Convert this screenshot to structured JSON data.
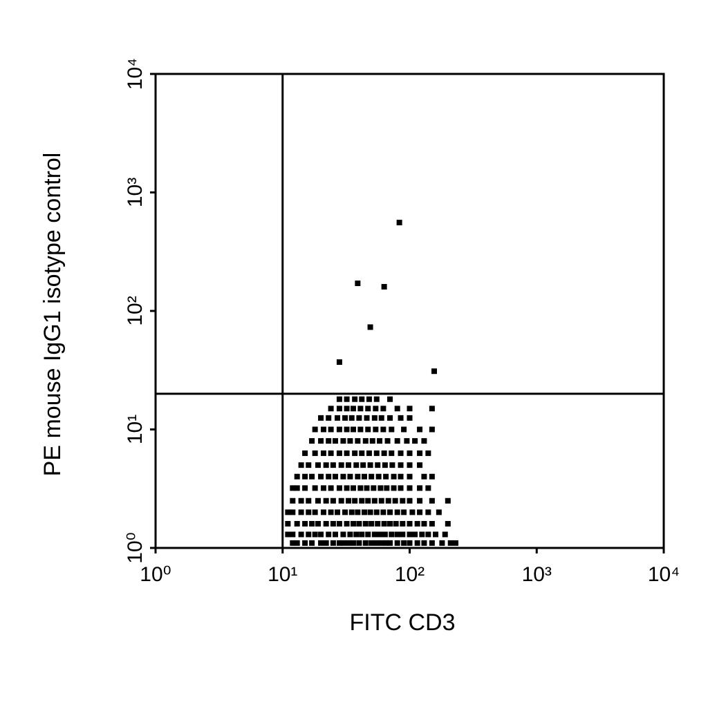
{
  "chart_data": {
    "type": "scatter",
    "x_label": "FITC CD3",
    "y_label": "PE mouse IgG1 isotype control",
    "xscale": "log",
    "yscale": "log",
    "xlim": [
      1,
      10000
    ],
    "ylim": [
      1,
      10000
    ],
    "xticks": [
      {
        "value": 1,
        "label": "10⁰"
      },
      {
        "value": 10,
        "label": "10¹"
      },
      {
        "value": 100,
        "label": "10²"
      },
      {
        "value": 1000,
        "label": "10³"
      },
      {
        "value": 10000,
        "label": "10⁴"
      }
    ],
    "yticks": [
      {
        "value": 1,
        "label": "10⁰"
      },
      {
        "value": 10,
        "label": "10¹"
      },
      {
        "value": 100,
        "label": "10²"
      },
      {
        "value": 1000,
        "label": "10³"
      },
      {
        "value": 10000,
        "label": "10⁴"
      }
    ],
    "quadrant": {
      "x": 10,
      "y": 20
    },
    "color": "#000000",
    "points": [
      [
        12,
        1.1
      ],
      [
        13,
        1.1
      ],
      [
        15,
        1.1
      ],
      [
        17,
        1.1
      ],
      [
        20,
        1.1
      ],
      [
        22,
        1.1
      ],
      [
        25,
        1.1
      ],
      [
        28,
        1.1
      ],
      [
        30,
        1.1
      ],
      [
        33,
        1.1
      ],
      [
        36,
        1.1
      ],
      [
        40,
        1.1
      ],
      [
        45,
        1.1
      ],
      [
        50,
        1.1
      ],
      [
        55,
        1.1
      ],
      [
        60,
        1.1
      ],
      [
        65,
        1.1
      ],
      [
        70,
        1.1
      ],
      [
        80,
        1.1
      ],
      [
        90,
        1.1
      ],
      [
        100,
        1.1
      ],
      [
        115,
        1.1
      ],
      [
        130,
        1.1
      ],
      [
        150,
        1.1
      ],
      [
        180,
        1.1
      ],
      [
        210,
        1.1
      ],
      [
        230,
        1.1
      ],
      [
        11,
        1.3
      ],
      [
        12,
        1.3
      ],
      [
        14,
        1.3
      ],
      [
        16,
        1.3
      ],
      [
        18,
        1.3
      ],
      [
        20,
        1.3
      ],
      [
        23,
        1.3
      ],
      [
        26,
        1.3
      ],
      [
        30,
        1.3
      ],
      [
        34,
        1.3
      ],
      [
        38,
        1.3
      ],
      [
        42,
        1.3
      ],
      [
        47,
        1.3
      ],
      [
        53,
        1.3
      ],
      [
        58,
        1.3
      ],
      [
        64,
        1.3
      ],
      [
        72,
        1.3
      ],
      [
        80,
        1.3
      ],
      [
        88,
        1.3
      ],
      [
        100,
        1.3
      ],
      [
        110,
        1.3
      ],
      [
        125,
        1.3
      ],
      [
        140,
        1.3
      ],
      [
        160,
        1.3
      ],
      [
        190,
        1.3
      ],
      [
        11,
        1.6
      ],
      [
        13,
        1.6
      ],
      [
        15,
        1.6
      ],
      [
        17,
        1.6
      ],
      [
        19,
        1.6
      ],
      [
        22,
        1.6
      ],
      [
        25,
        1.6
      ],
      [
        28,
        1.6
      ],
      [
        32,
        1.6
      ],
      [
        36,
        1.6
      ],
      [
        40,
        1.6
      ],
      [
        45,
        1.6
      ],
      [
        50,
        1.6
      ],
      [
        56,
        1.6
      ],
      [
        63,
        1.6
      ],
      [
        70,
        1.6
      ],
      [
        78,
        1.6
      ],
      [
        88,
        1.6
      ],
      [
        100,
        1.6
      ],
      [
        115,
        1.6
      ],
      [
        130,
        1.6
      ],
      [
        150,
        1.6
      ],
      [
        200,
        1.6
      ],
      [
        11,
        2
      ],
      [
        12,
        2
      ],
      [
        14,
        2
      ],
      [
        16,
        2
      ],
      [
        18,
        2
      ],
      [
        21,
        2
      ],
      [
        24,
        2
      ],
      [
        27,
        2
      ],
      [
        31,
        2
      ],
      [
        35,
        2
      ],
      [
        39,
        2
      ],
      [
        44,
        2
      ],
      [
        49,
        2
      ],
      [
        55,
        2
      ],
      [
        62,
        2
      ],
      [
        70,
        2
      ],
      [
        80,
        2
      ],
      [
        90,
        2
      ],
      [
        105,
        2
      ],
      [
        120,
        2
      ],
      [
        140,
        2
      ],
      [
        170,
        2
      ],
      [
        12,
        2.5
      ],
      [
        14,
        2.5
      ],
      [
        16,
        2.5
      ],
      [
        19,
        2.5
      ],
      [
        22,
        2.5
      ],
      [
        25,
        2.5
      ],
      [
        29,
        2.5
      ],
      [
        33,
        2.5
      ],
      [
        37,
        2.5
      ],
      [
        42,
        2.5
      ],
      [
        47,
        2.5
      ],
      [
        53,
        2.5
      ],
      [
        60,
        2.5
      ],
      [
        68,
        2.5
      ],
      [
        77,
        2.5
      ],
      [
        88,
        2.5
      ],
      [
        100,
        2.5
      ],
      [
        120,
        2.5
      ],
      [
        150,
        2.5
      ],
      [
        200,
        2.5
      ],
      [
        12,
        3.2
      ],
      [
        13,
        3.2
      ],
      [
        15,
        3.2
      ],
      [
        18,
        3.2
      ],
      [
        21,
        3.2
      ],
      [
        24,
        3.2
      ],
      [
        28,
        3.2
      ],
      [
        32,
        3.2
      ],
      [
        36,
        3.2
      ],
      [
        41,
        3.2
      ],
      [
        46,
        3.2
      ],
      [
        52,
        3.2
      ],
      [
        59,
        3.2
      ],
      [
        66,
        3.2
      ],
      [
        75,
        3.2
      ],
      [
        85,
        3.2
      ],
      [
        100,
        3.2
      ],
      [
        120,
        3.2
      ],
      [
        140,
        3.2
      ],
      [
        13,
        4
      ],
      [
        15,
        4
      ],
      [
        17,
        4
      ],
      [
        20,
        4
      ],
      [
        23,
        4
      ],
      [
        26,
        4
      ],
      [
        30,
        4
      ],
      [
        34,
        4
      ],
      [
        39,
        4
      ],
      [
        44,
        4
      ],
      [
        50,
        4
      ],
      [
        57,
        4
      ],
      [
        65,
        4
      ],
      [
        75,
        4
      ],
      [
        85,
        4
      ],
      [
        100,
        4
      ],
      [
        130,
        4
      ],
      [
        150,
        4
      ],
      [
        14,
        5
      ],
      [
        16,
        5
      ],
      [
        19,
        5
      ],
      [
        22,
        5
      ],
      [
        25,
        5
      ],
      [
        29,
        5
      ],
      [
        33,
        5
      ],
      [
        38,
        5
      ],
      [
        43,
        5
      ],
      [
        49,
        5
      ],
      [
        56,
        5
      ],
      [
        64,
        5
      ],
      [
        73,
        5
      ],
      [
        85,
        5
      ],
      [
        100,
        5
      ],
      [
        120,
        5
      ],
      [
        15,
        6.3
      ],
      [
        18,
        6.3
      ],
      [
        21,
        6.3
      ],
      [
        24,
        6.3
      ],
      [
        28,
        6.3
      ],
      [
        32,
        6.3
      ],
      [
        37,
        6.3
      ],
      [
        42,
        6.3
      ],
      [
        48,
        6.3
      ],
      [
        55,
        6.3
      ],
      [
        63,
        6.3
      ],
      [
        72,
        6.3
      ],
      [
        85,
        6.3
      ],
      [
        100,
        6.3
      ],
      [
        120,
        6.3
      ],
      [
        140,
        6.3
      ],
      [
        17,
        8
      ],
      [
        20,
        8
      ],
      [
        23,
        8
      ],
      [
        26,
        8
      ],
      [
        30,
        8
      ],
      [
        34,
        8
      ],
      [
        39,
        8
      ],
      [
        45,
        8
      ],
      [
        51,
        8
      ],
      [
        58,
        8
      ],
      [
        67,
        8
      ],
      [
        80,
        8
      ],
      [
        95,
        8
      ],
      [
        110,
        8
      ],
      [
        130,
        8
      ],
      [
        18,
        10
      ],
      [
        21,
        10
      ],
      [
        24,
        10
      ],
      [
        28,
        10
      ],
      [
        32,
        10
      ],
      [
        36,
        10
      ],
      [
        41,
        10
      ],
      [
        47,
        10
      ],
      [
        54,
        10
      ],
      [
        62,
        10
      ],
      [
        72,
        10
      ],
      [
        90,
        10
      ],
      [
        120,
        10
      ],
      [
        150,
        10
      ],
      [
        20,
        12.5
      ],
      [
        23,
        12.5
      ],
      [
        27,
        12.5
      ],
      [
        31,
        12.5
      ],
      [
        35,
        12.5
      ],
      [
        40,
        12.5
      ],
      [
        46,
        12.5
      ],
      [
        53,
        12.5
      ],
      [
        60,
        12.5
      ],
      [
        70,
        12.5
      ],
      [
        85,
        12.5
      ],
      [
        100,
        12.5
      ],
      [
        24,
        15
      ],
      [
        28,
        15
      ],
      [
        32,
        15
      ],
      [
        36,
        15
      ],
      [
        41,
        15
      ],
      [
        47,
        15
      ],
      [
        54,
        15
      ],
      [
        62,
        15
      ],
      [
        80,
        15
      ],
      [
        100,
        15
      ],
      [
        150,
        15
      ],
      [
        28,
        18
      ],
      [
        32,
        18
      ],
      [
        37,
        18
      ],
      [
        42,
        18
      ],
      [
        48,
        18
      ],
      [
        55,
        18
      ],
      [
        70,
        18
      ],
      [
        83,
        557
      ],
      [
        39,
        171
      ],
      [
        63,
        160
      ],
      [
        49,
        73
      ],
      [
        28,
        37
      ],
      [
        156,
        31
      ]
    ]
  }
}
